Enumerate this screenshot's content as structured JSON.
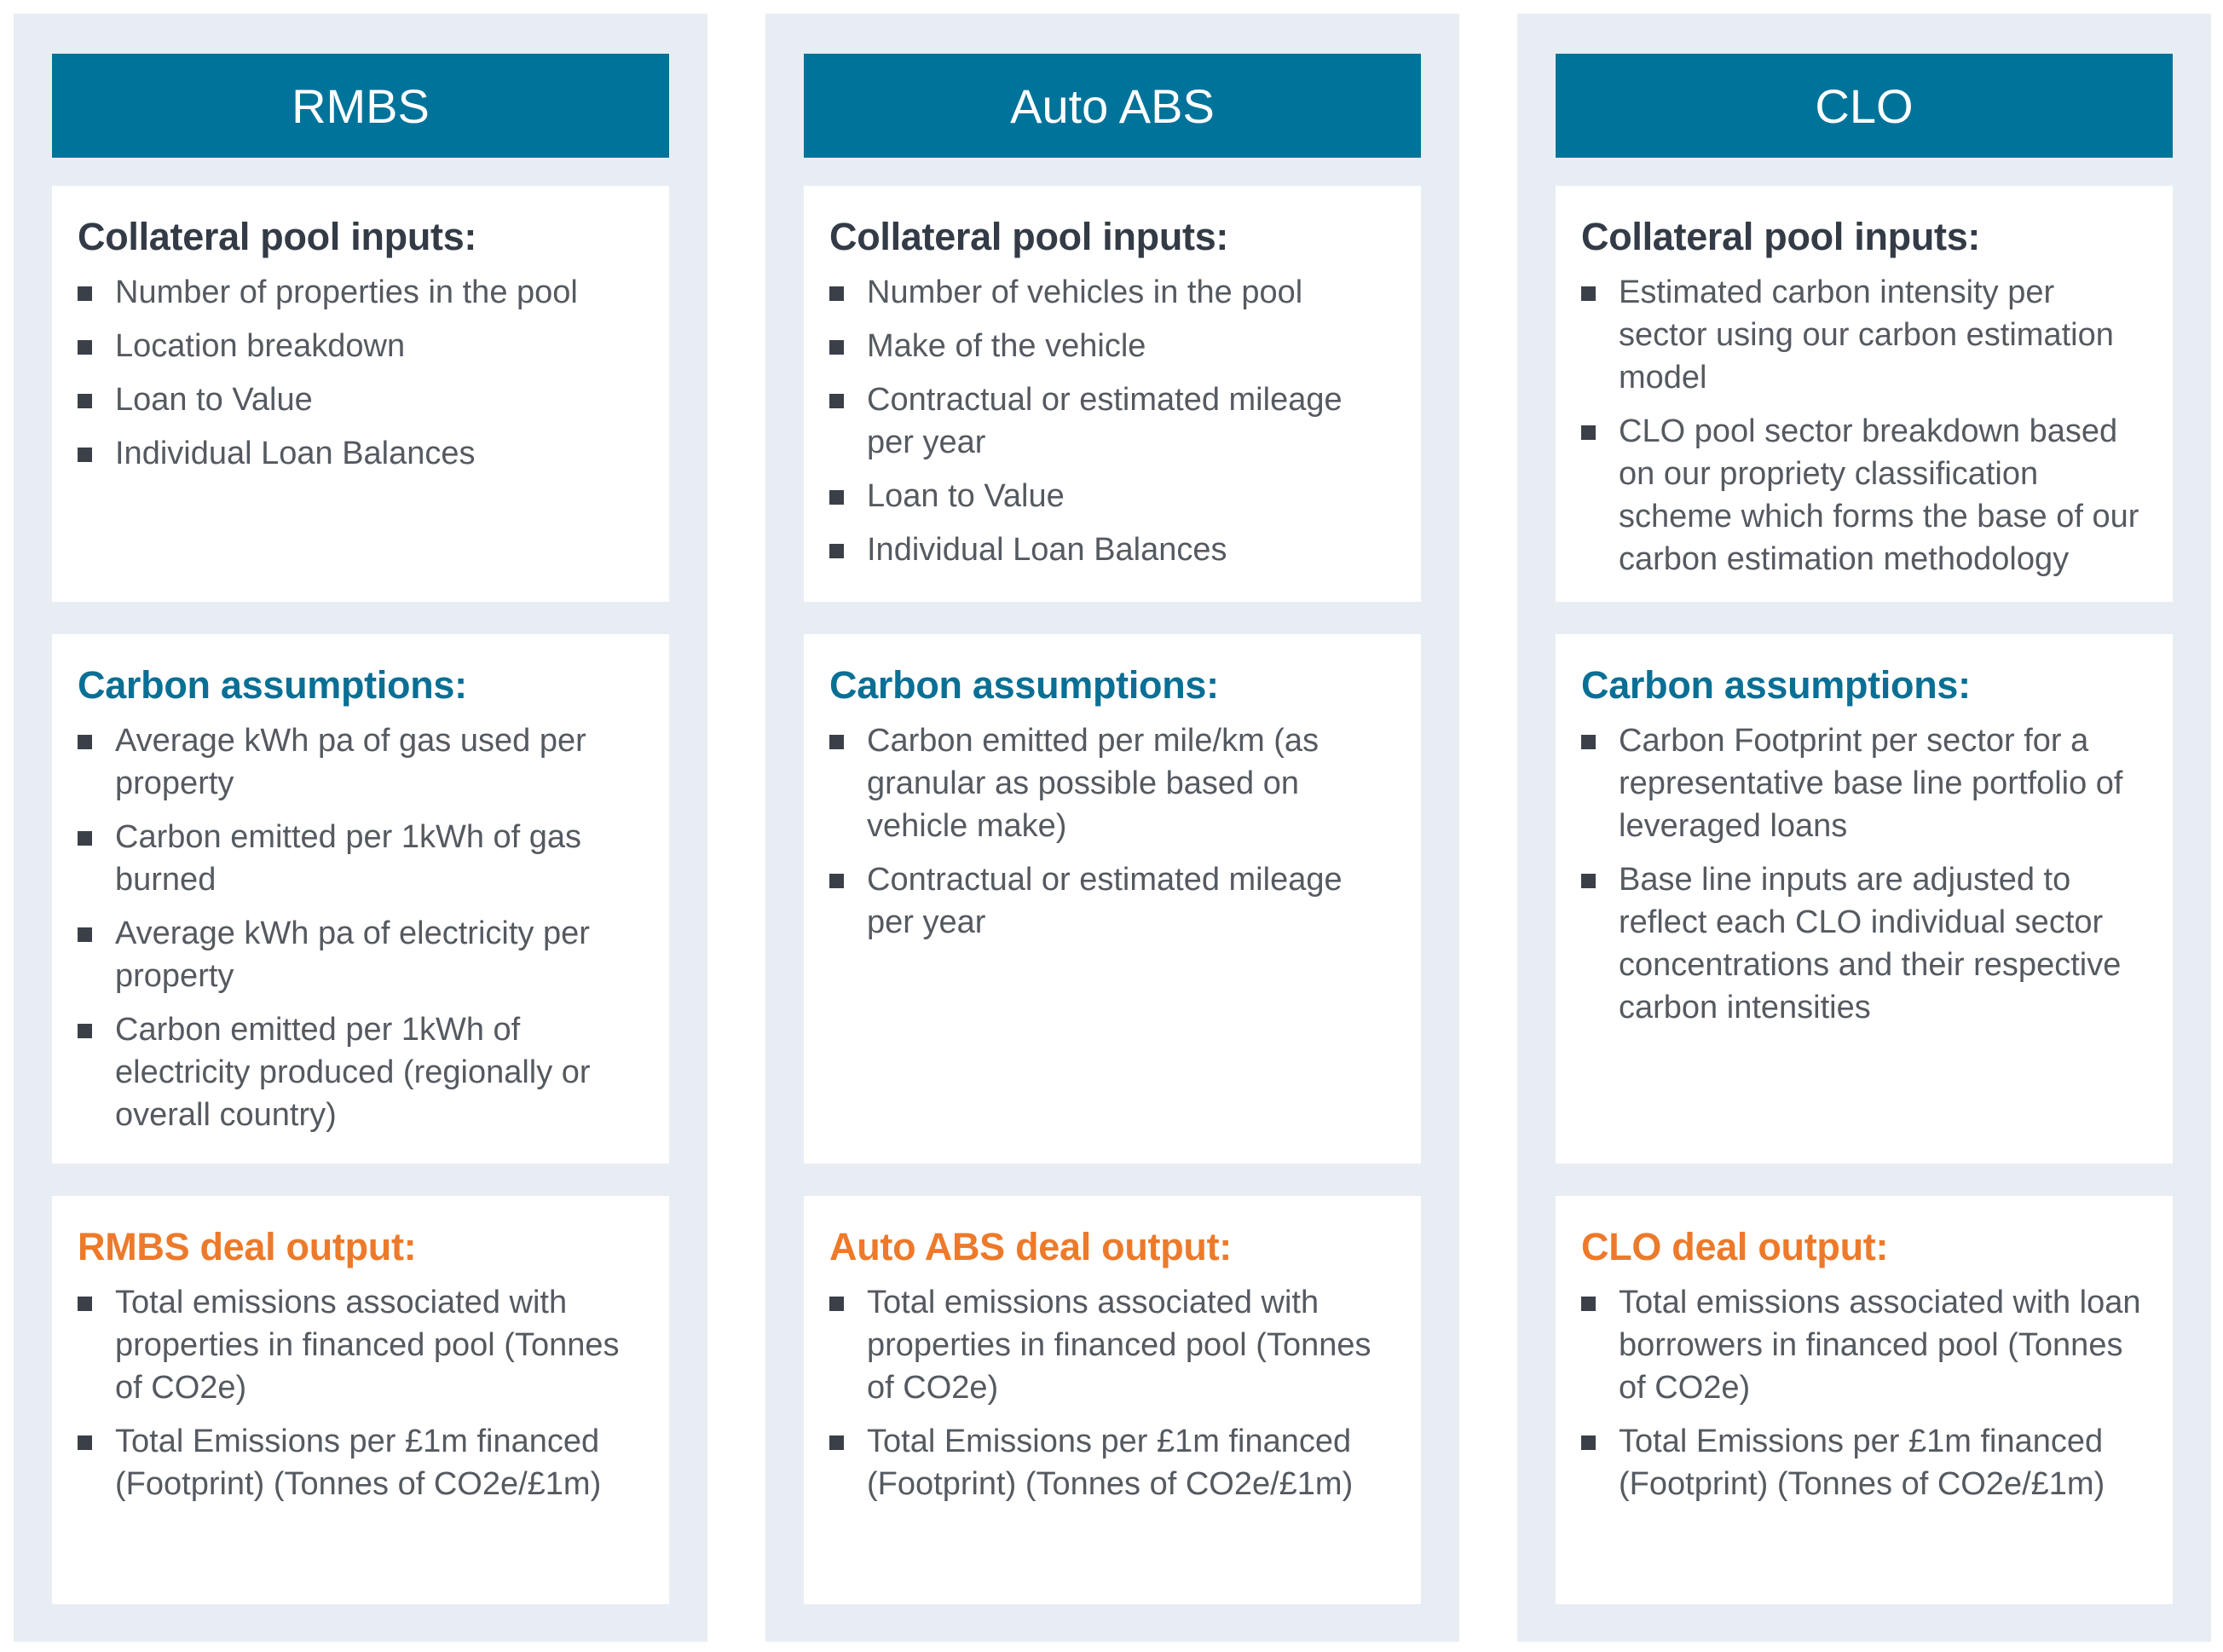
{
  "columns": [
    {
      "header": "RMBS",
      "inputs": {
        "title": "Collateral pool inputs:",
        "items": [
          "Number of properties in the pool",
          "Location breakdown",
          "Loan to Value",
          "Individual Loan Balances"
        ]
      },
      "assumptions": {
        "title": "Carbon assumptions:",
        "items": [
          "Average kWh pa of gas used per property",
          "Carbon emitted per 1kWh of gas burned",
          "Average kWh pa of electricity per property",
          "Carbon emitted per 1kWh of electricity produced (regionally or overall country)"
        ]
      },
      "output": {
        "title": "RMBS deal output:",
        "items": [
          "Total emissions associated with properties in financed pool (Tonnes of CO2e)",
          "Total Emissions per £1m financed (Footprint) (Tonnes of CO2e/£1m)"
        ]
      }
    },
    {
      "header": "Auto ABS",
      "inputs": {
        "title": "Collateral pool inputs:",
        "items": [
          "Number of vehicles in the pool",
          "Make of the vehicle",
          "Contractual or estimated mileage per year",
          "Loan to Value",
          "Individual Loan Balances"
        ]
      },
      "assumptions": {
        "title": "Carbon assumptions:",
        "items": [
          "Carbon emitted per mile/km (as granular as possible based on vehicle make)",
          "Contractual or estimated mileage per year"
        ]
      },
      "output": {
        "title": "Auto ABS deal output:",
        "items": [
          "Total emissions associated with properties in financed pool (Tonnes of CO2e)",
          "Total Emissions per £1m financed (Footprint) (Tonnes of CO2e/£1m)"
        ]
      }
    },
    {
      "header": "CLO",
      "inputs": {
        "title": "Collateral pool inputs:",
        "items": [
          "Estimated carbon intensity per sector using our carbon estimation model",
          "CLO pool sector breakdown based on our propriety classification scheme which forms the base of our carbon estimation methodology"
        ]
      },
      "assumptions": {
        "title": "Carbon assumptions:",
        "items": [
          "Carbon Footprint per sector for a representative base line portfolio of leveraged loans",
          "Base line inputs are adjusted to reflect each CLO individual sector concentrations and their respective carbon intensities"
        ]
      },
      "output": {
        "title": "CLO deal output:",
        "items": [
          "Total emissions associated with loan borrowers in financed pool (Tonnes of CO2e)",
          "Total Emissions per £1m financed (Footprint) (Tonnes of CO2e/£1m)"
        ]
      }
    }
  ],
  "colors": {
    "header_bg": "#00739a",
    "column_bg": "#e8edf4",
    "title_dark": "#333b47",
    "title_blue": "#0a6f95",
    "title_orange": "#ed7a2a",
    "body_text": "#555a61"
  },
  "bullet_icon": "square-bullet-icon"
}
